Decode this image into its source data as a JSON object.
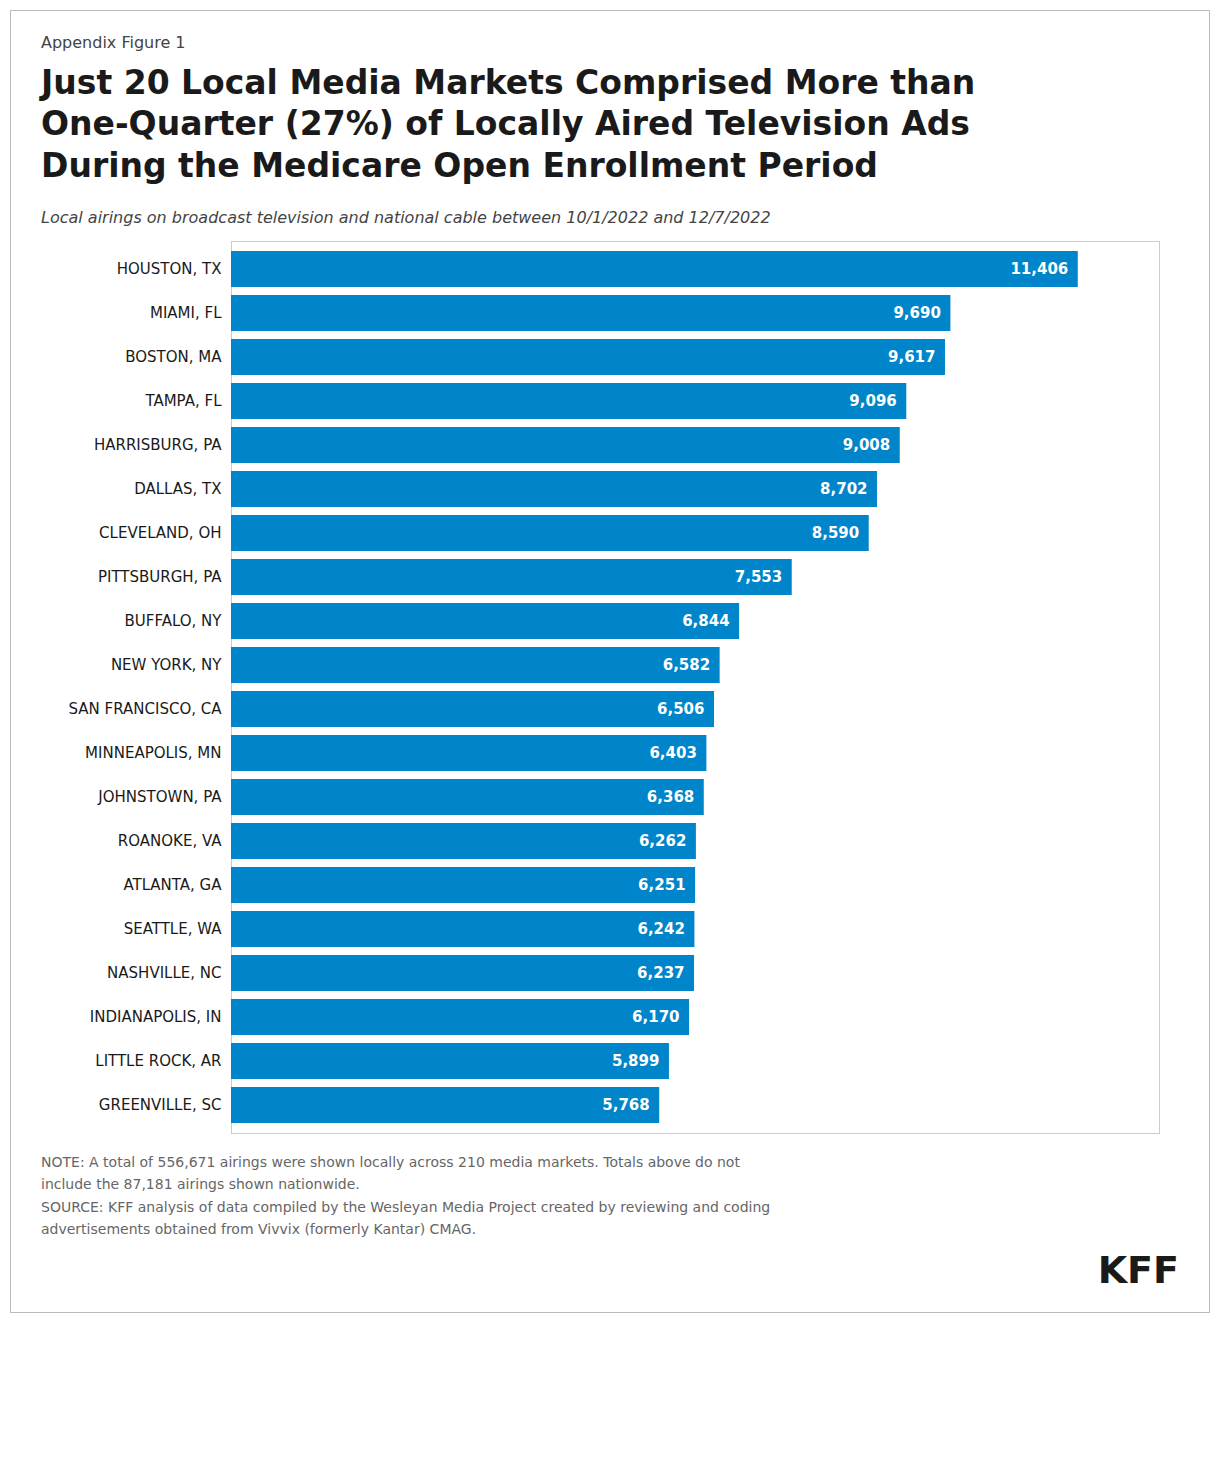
{
  "chart_data": {
    "type": "bar",
    "orientation": "horizontal",
    "title": "Just 20 Local Media Markets Comprised More than\nOne-Quarter (27%) of Locally Aired Television Ads\nDuring the Medicare Open Enrollment Period",
    "subtitle": "Local airings on broadcast television and national cable between 10/1/2022 and 12/7/2022",
    "annotations": [
      "Appendix Figure 1",
      "NOTE: A total of 556,671 airings were shown locally across 210 media markets. Totals above do not",
      "include the 87,181 airings shown nationwide.",
      "SOURCE: KFF analysis of data compiled by the Wesleyan Media Project created by reviewing and coding",
      "advertisements obtained from Vivvix (formerly Kantar) CMAG.",
      "KFF"
    ],
    "categories": [
      "HOUSTON, TX",
      "MIAMI, FL",
      "BOSTON, MA",
      "TAMPA, FL",
      "HARRISBURG, PA",
      "DALLAS, TX",
      "CLEVELAND, OH",
      "PITTSBURGH, PA",
      "BUFFALO, NY",
      "NEW YORK, NY",
      "SAN FRANCISCO, CA",
      "MINNEAPOLIS, MN",
      "JOHNSTOWN, PA",
      "ROANOKE, VA",
      "ATLANTA, GA",
      "SEATTLE, WA",
      "NASHVILLE, NC",
      "INDIANAPOLIS, IN",
      "LITTLE ROCK, AR",
      "GREENVILLE, SC"
    ],
    "values": [
      11406,
      9690,
      9617,
      9096,
      9008,
      8702,
      8590,
      7553,
      6844,
      6582,
      6506,
      6403,
      6368,
      6262,
      6251,
      6242,
      6237,
      6170,
      5899,
      5768
    ],
    "value_labels": [
      "11,406",
      "9,690",
      "9,617",
      "9,096",
      "9,008",
      "8,702",
      "8,590",
      "7,553",
      "6,844",
      "6,582",
      "6,506",
      "6,403",
      "6,368",
      "6,262",
      "6,251",
      "6,242",
      "6,237",
      "6,170",
      "5,899",
      "5,768"
    ],
    "data_labels": true,
    "color": "#0085CA",
    "xlim": [
      0,
      12500
    ],
    "tick_labels": "y",
    "grid": false
  }
}
